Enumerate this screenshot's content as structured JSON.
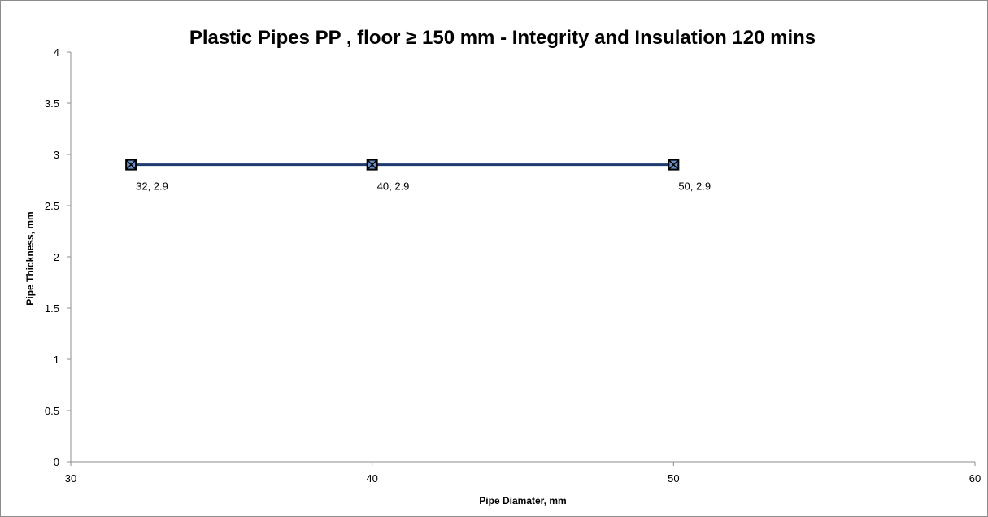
{
  "chart_data": {
    "type": "line",
    "title": "Plastic Pipes PP , floor ≥ 150 mm - Integrity and Insulation 120 mins",
    "xlabel": "Pipe Diamater, mm",
    "ylabel": "Pipe Thickness, mm",
    "xlim": [
      30,
      60
    ],
    "ylim": [
      0,
      4
    ],
    "x_ticks": [
      "30",
      "40",
      "50",
      "60"
    ],
    "y_ticks": [
      "0",
      "0.5",
      "1",
      "1.5",
      "2",
      "2.5",
      "3",
      "3.5",
      "4"
    ],
    "grid": false,
    "legend": "none",
    "series": [
      {
        "x": [
          32,
          40,
          50
        ],
        "values": [
          2.9,
          2.9,
          2.9
        ],
        "data_labels": [
          "32, 2.9",
          "40, 2.9",
          "50, 2.9"
        ],
        "color": "#1f3a6e",
        "marker": "square-x",
        "marker_color": "#000000",
        "marker_fill": "#6a8fc7"
      }
    ]
  }
}
